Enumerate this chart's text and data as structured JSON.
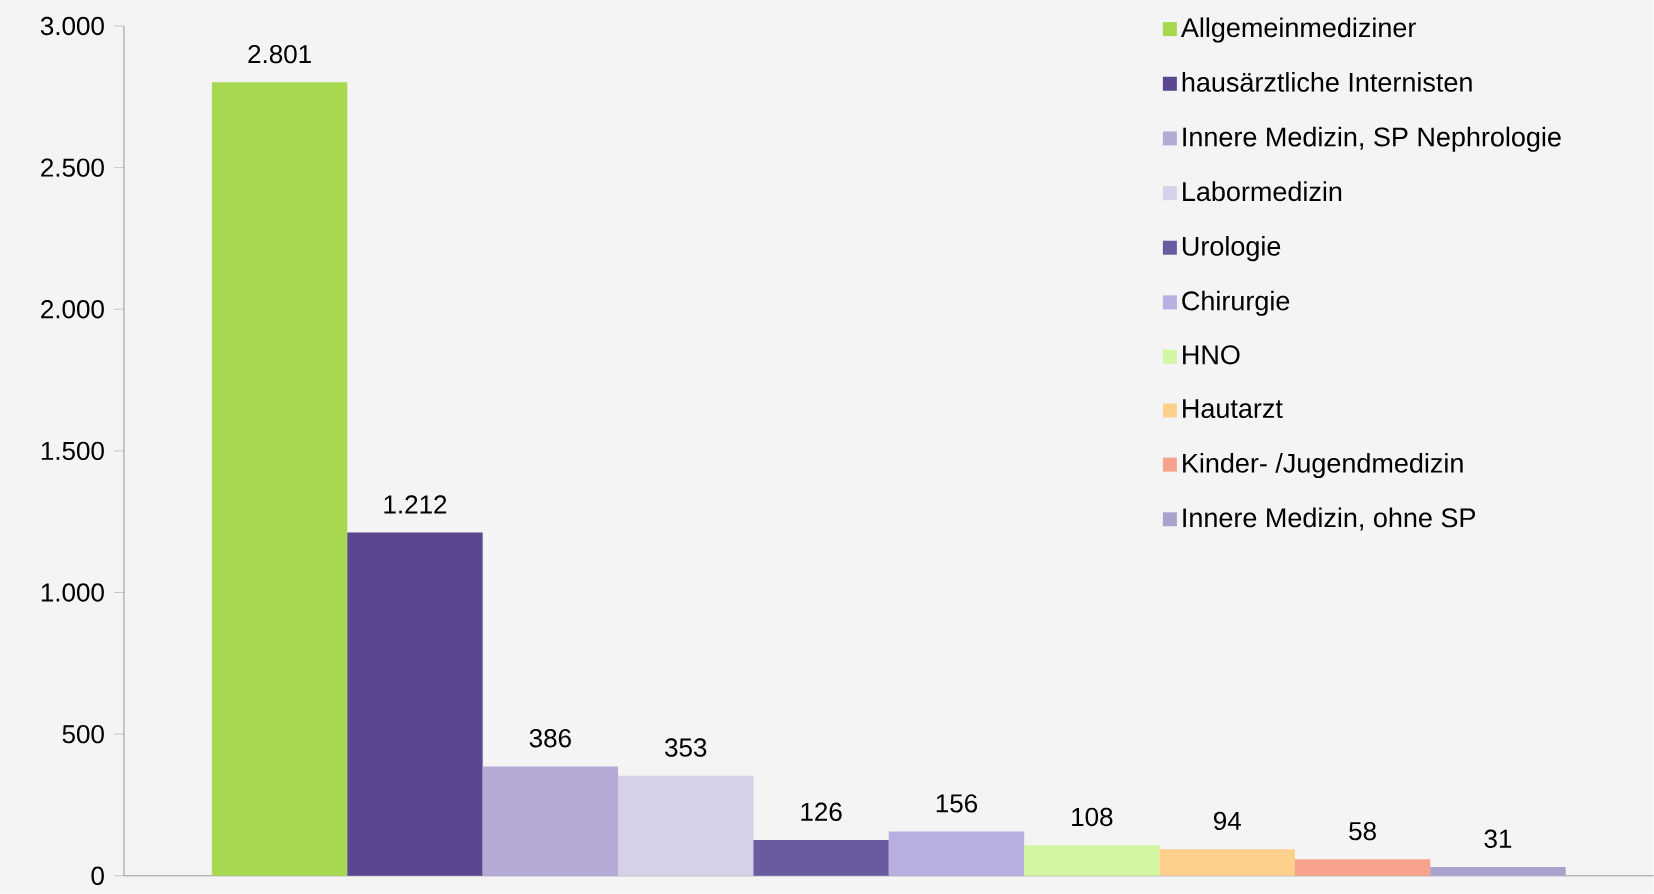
{
  "chart_data": {
    "type": "bar",
    "categories": [
      null
    ],
    "series": [
      {
        "name": "Allgemeinmediziner",
        "color": "#a8d850",
        "values": [
          2801
        ],
        "value_labels": [
          "2.801"
        ]
      },
      {
        "name": "hausärztliche Internisten",
        "color": "#5a468e",
        "values": [
          1212
        ],
        "value_labels": [
          "1.212"
        ]
      },
      {
        "name": "Innere Medizin, SP Nephrologie",
        "color": "#b5a9d6",
        "values": [
          386
        ],
        "value_labels": [
          "386"
        ]
      },
      {
        "name": "Labormedizin",
        "color": "#d6d0e8",
        "values": [
          353
        ],
        "value_labels": [
          "353"
        ]
      },
      {
        "name": "Urologie",
        "color": "#6a5aa0",
        "values": [
          126
        ],
        "value_labels": [
          "126"
        ]
      },
      {
        "name": "Chirurgie",
        "color": "#b8aee2",
        "values": [
          156
        ],
        "value_labels": [
          "156"
        ]
      },
      {
        "name": "HNO",
        "color": "#d4f5a2",
        "values": [
          108
        ],
        "value_labels": [
          "108"
        ]
      },
      {
        "name": "Hautarzt",
        "color": "#fdd08c",
        "values": [
          94
        ],
        "value_labels": [
          "94"
        ]
      },
      {
        "name": "Kinder- /Jugendmedizin",
        "color": "#f7a28c",
        "values": [
          58
        ],
        "value_labels": [
          "58"
        ]
      },
      {
        "name": "Innere Medizin, ohne SP",
        "color": "#a8a2cc",
        "values": [
          31
        ],
        "value_labels": [
          "31"
        ]
      }
    ],
    "ylim": [
      0,
      3000
    ],
    "yticks": [
      {
        "value": 0,
        "label": "0"
      },
      {
        "value": 500,
        "label": "500"
      },
      {
        "value": 1000,
        "label": "1.000"
      },
      {
        "value": 1500,
        "label": "1.500"
      },
      {
        "value": 2000,
        "label": "2.000"
      },
      {
        "value": 2500,
        "label": "2.500"
      },
      {
        "value": 3000,
        "label": "3.000"
      }
    ],
    "legend": "top right"
  }
}
